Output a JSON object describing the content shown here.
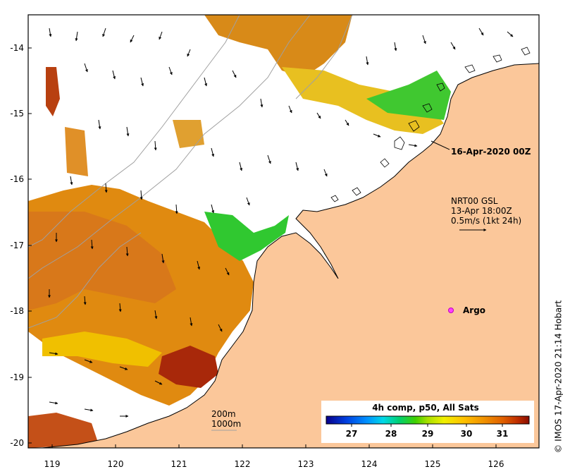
{
  "map": {
    "x_ticks": [
      "119",
      "120",
      "121",
      "122",
      "123",
      "124",
      "125",
      "126"
    ],
    "y_ticks": [
      "-14",
      "-15",
      "-16",
      "-17",
      "-18",
      "-19",
      "-20"
    ],
    "land_color": "#fbc79a",
    "ocean_nodata_color": "#ffffff"
  },
  "annotations": {
    "date_label": "16-Apr-2020 00Z",
    "product_line1": "NRT00 GSL",
    "product_line2": "13-Apr 18:00Z",
    "product_line3": "0.5m/s (1kt 24h)",
    "argo_label": "Argo"
  },
  "depth_legend": {
    "line1": "200m",
    "line2": "1000m"
  },
  "colorbar": {
    "title": "4h comp, p50, All Sats",
    "ticks": [
      "27",
      "28",
      "29",
      "30",
      "31"
    ],
    "colors": [
      "#08008a",
      "#0040e0",
      "#0090ff",
      "#00d8e8",
      "#00d070",
      "#40d000",
      "#a8e000",
      "#f0f000",
      "#ffc000",
      "#f09000",
      "#e06000",
      "#c03000",
      "#8a0c00"
    ]
  },
  "credit": "© IMOS 17-Apr-2020 21:14 Hobart"
}
